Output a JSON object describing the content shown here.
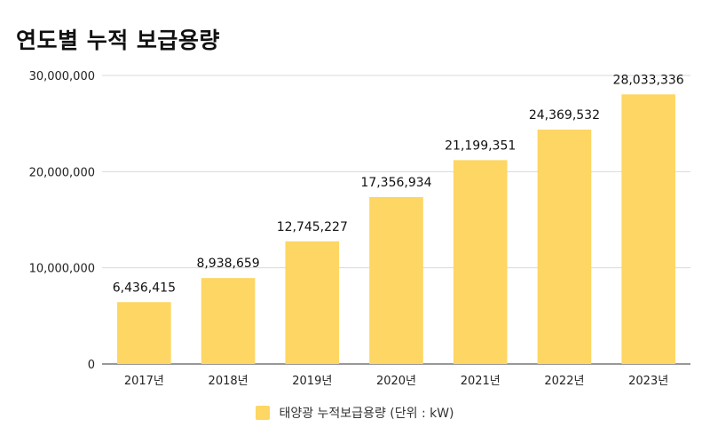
{
  "chart_data": {
    "type": "bar",
    "title": "연도별 누적 보급용량",
    "categories": [
      "2017년",
      "2018년",
      "2019년",
      "2020년",
      "2021년",
      "2022년",
      "2023년"
    ],
    "series": [
      {
        "name": "태양광 누적보급용량 (단위 : kW)",
        "values": [
          6436415,
          8938659,
          12745227,
          17356934,
          21199351,
          24369532,
          28033336
        ],
        "data_labels": [
          "6,436,415",
          "8,938,659",
          "12,745,227",
          "17,356,934",
          "21,199,351",
          "24,369,532",
          "28,033,336"
        ],
        "color": "#FDD663"
      }
    ],
    "yticks": [
      0,
      10000000,
      20000000,
      30000000
    ],
    "ytick_labels": [
      "0",
      "10,000,000",
      "20,000,000",
      "30,000,000"
    ],
    "ylim": [
      0,
      30000000
    ],
    "xlabel": "",
    "ylabel": "",
    "grid": true,
    "legend": "bottom"
  },
  "colors": {
    "bar": "#FDD663",
    "gridline": "#D9D9D9",
    "axis": "#333333"
  }
}
